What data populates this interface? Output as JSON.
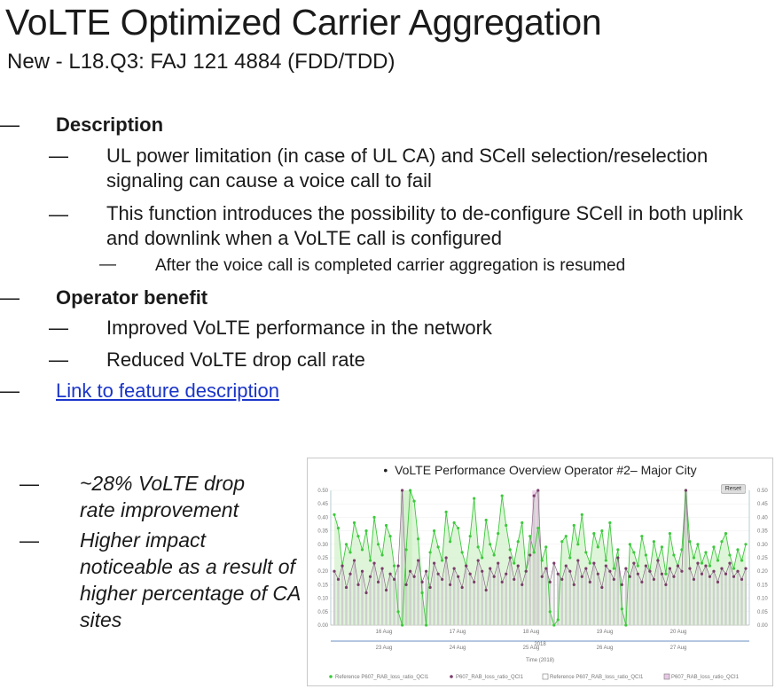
{
  "slide": {
    "title": "VoLTE Optimized Carrier Aggregation",
    "subtitle": "New - L18.Q3: FAJ 121 4884 (FDD/TDD)"
  },
  "bullets": {
    "dash": "—",
    "description_heading": "Description",
    "desc_1": "UL power limitation (in case of UL CA) and SCell selection/reselection signaling can cause a voice call to fail",
    "desc_2": "This function introduces the possibility to de-configure SCell in both uplink and downlink when a VoLTE call is configured",
    "desc_2a": "After the voice call is completed carrier aggregation is resumed",
    "benefit_heading": "Operator benefit",
    "benefit_1": "Improved VoLTE performance in the network",
    "benefit_2": "Reduced VoLTE drop call rate",
    "link": "Link to feature description"
  },
  "results": {
    "item_1": "~28% VoLTE drop rate improvement",
    "item_2": "Higher impact noticeable as a result of higher percentage of CA sites"
  },
  "chart_data": {
    "type": "line",
    "title_bullet": "•",
    "title": "VoLTE Performance Overview Operator #2– Major City",
    "reset_label": "Reset",
    "ylim": [
      0,
      0.5
    ],
    "ytick_labels": [
      "0.00",
      "0.05",
      "0.10",
      "0.15",
      "0.20",
      "0.25",
      "0.30",
      "0.35",
      "0.40",
      "0.45",
      "0.50"
    ],
    "x_ticks_top": [
      "16 Aug",
      "17 Aug",
      "18 Aug",
      "19 Aug",
      "20 Aug"
    ],
    "x_ticks_bottom": [
      "23 Aug",
      "24 Aug",
      "25 Aug",
      "26 Aug",
      "27 Aug"
    ],
    "year_label": "2018",
    "xlabel": "Time (2018)",
    "legend": [
      "Reference P607_RAB_loss_ratio_QCI1",
      "P607_RAB_loss_ratio_QCI1",
      "Reference P607_RAB_loss_ratio_QCI1",
      "P607_RAB_loss_ratio_QCI1"
    ],
    "colors": {
      "reference": "#3dc93d",
      "current": "#7a3c6a",
      "reference_area": "#c9efc0",
      "current_bar": "#cfcfcf"
    },
    "series": [
      {
        "name": "Reference P607_RAB_loss_ratio_QCI1",
        "values": [
          0.41,
          0.36,
          0.22,
          0.3,
          0.27,
          0.38,
          0.33,
          0.28,
          0.35,
          0.24,
          0.4,
          0.3,
          0.26,
          0.37,
          0.33,
          0.22,
          0.05,
          0.0,
          0.28,
          0.5,
          0.46,
          0.32,
          0.12,
          0.0,
          0.27,
          0.35,
          0.29,
          0.24,
          0.42,
          0.31,
          0.38,
          0.36,
          0.27,
          0.22,
          0.33,
          0.47,
          0.29,
          0.25,
          0.39,
          0.3,
          0.26,
          0.34,
          0.48,
          0.37,
          0.28,
          0.23,
          0.31,
          0.38,
          0.2,
          0.33,
          0.27,
          0.36,
          0.24,
          0.29,
          0.05,
          0.0,
          0.02,
          0.31,
          0.33,
          0.25,
          0.37,
          0.3,
          0.41,
          0.27,
          0.23,
          0.34,
          0.29,
          0.35,
          0.24,
          0.38,
          0.21,
          0.28,
          0.06,
          0.0,
          0.3,
          0.27,
          0.22,
          0.33,
          0.26,
          0.2,
          0.31,
          0.24,
          0.29,
          0.19,
          0.34,
          0.26,
          0.22,
          0.28,
          0.5,
          0.31,
          0.25,
          0.3,
          0.23,
          0.27,
          0.22,
          0.29,
          0.24,
          0.31,
          0.34,
          0.26,
          0.21,
          0.28,
          0.24,
          0.3
        ]
      },
      {
        "name": "P607_RAB_loss_ratio_QCI1",
        "values": [
          0.2,
          0.17,
          0.22,
          0.14,
          0.19,
          0.24,
          0.15,
          0.2,
          0.12,
          0.18,
          0.23,
          0.16,
          0.21,
          0.13,
          0.19,
          0.17,
          0.22,
          0.5,
          0.15,
          0.2,
          0.18,
          0.24,
          0.16,
          0.2,
          0.14,
          0.23,
          0.19,
          0.17,
          0.25,
          0.15,
          0.21,
          0.18,
          0.14,
          0.22,
          0.19,
          0.16,
          0.24,
          0.2,
          0.13,
          0.21,
          0.18,
          0.23,
          0.16,
          0.19,
          0.25,
          0.17,
          0.22,
          0.15,
          0.2,
          0.26,
          0.48,
          0.5,
          0.18,
          0.21,
          0.16,
          0.23,
          0.19,
          0.17,
          0.22,
          0.2,
          0.15,
          0.24,
          0.18,
          0.21,
          0.16,
          0.23,
          0.19,
          0.14,
          0.22,
          0.2,
          0.17,
          0.25,
          0.15,
          0.21,
          0.18,
          0.23,
          0.19,
          0.16,
          0.22,
          0.2,
          0.17,
          0.24,
          0.19,
          0.15,
          0.21,
          0.18,
          0.22,
          0.2,
          0.5,
          0.21,
          0.17,
          0.23,
          0.19,
          0.22,
          0.18,
          0.2,
          0.16,
          0.21,
          0.19,
          0.23,
          0.18,
          0.2,
          0.17,
          0.21
        ]
      }
    ]
  }
}
